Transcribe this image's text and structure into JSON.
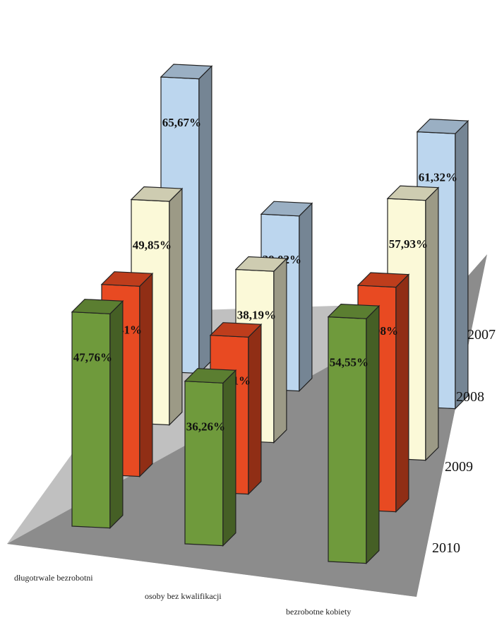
{
  "chart_data": {
    "type": "bar",
    "style": "3d-grouped-columns",
    "categories": [
      "długotrwale bezrobotni",
      "osoby bez kwalifikacji",
      "bezrobotne kobiety"
    ],
    "series": [
      {
        "name": "2007",
        "color": "#bcd6ee",
        "values": [
          65.67,
          39.02,
          61.32
        ],
        "labels": [
          "65,67%",
          "39,02%",
          "61,32%"
        ]
      },
      {
        "name": "2008",
        "color": "#fbf9d8",
        "values": [
          49.85,
          38.19,
          57.93
        ],
        "labels": [
          "49,85%",
          "38,19%",
          "57,93%"
        ]
      },
      {
        "name": "2009",
        "color": "#e84a22",
        "values": [
          42.41,
          35.01,
          50.08
        ],
        "labels": [
          "42,41%",
          "35,01%",
          "50,08%"
        ]
      },
      {
        "name": "2010",
        "color": "#6f9a3c",
        "values": [
          47.76,
          36.26,
          54.55
        ],
        "labels": [
          "47,76%",
          "36,26%",
          "54,55%"
        ]
      }
    ],
    "unit": "%",
    "floor_color": "#8c8c8c",
    "grid": false,
    "legend": "none"
  }
}
